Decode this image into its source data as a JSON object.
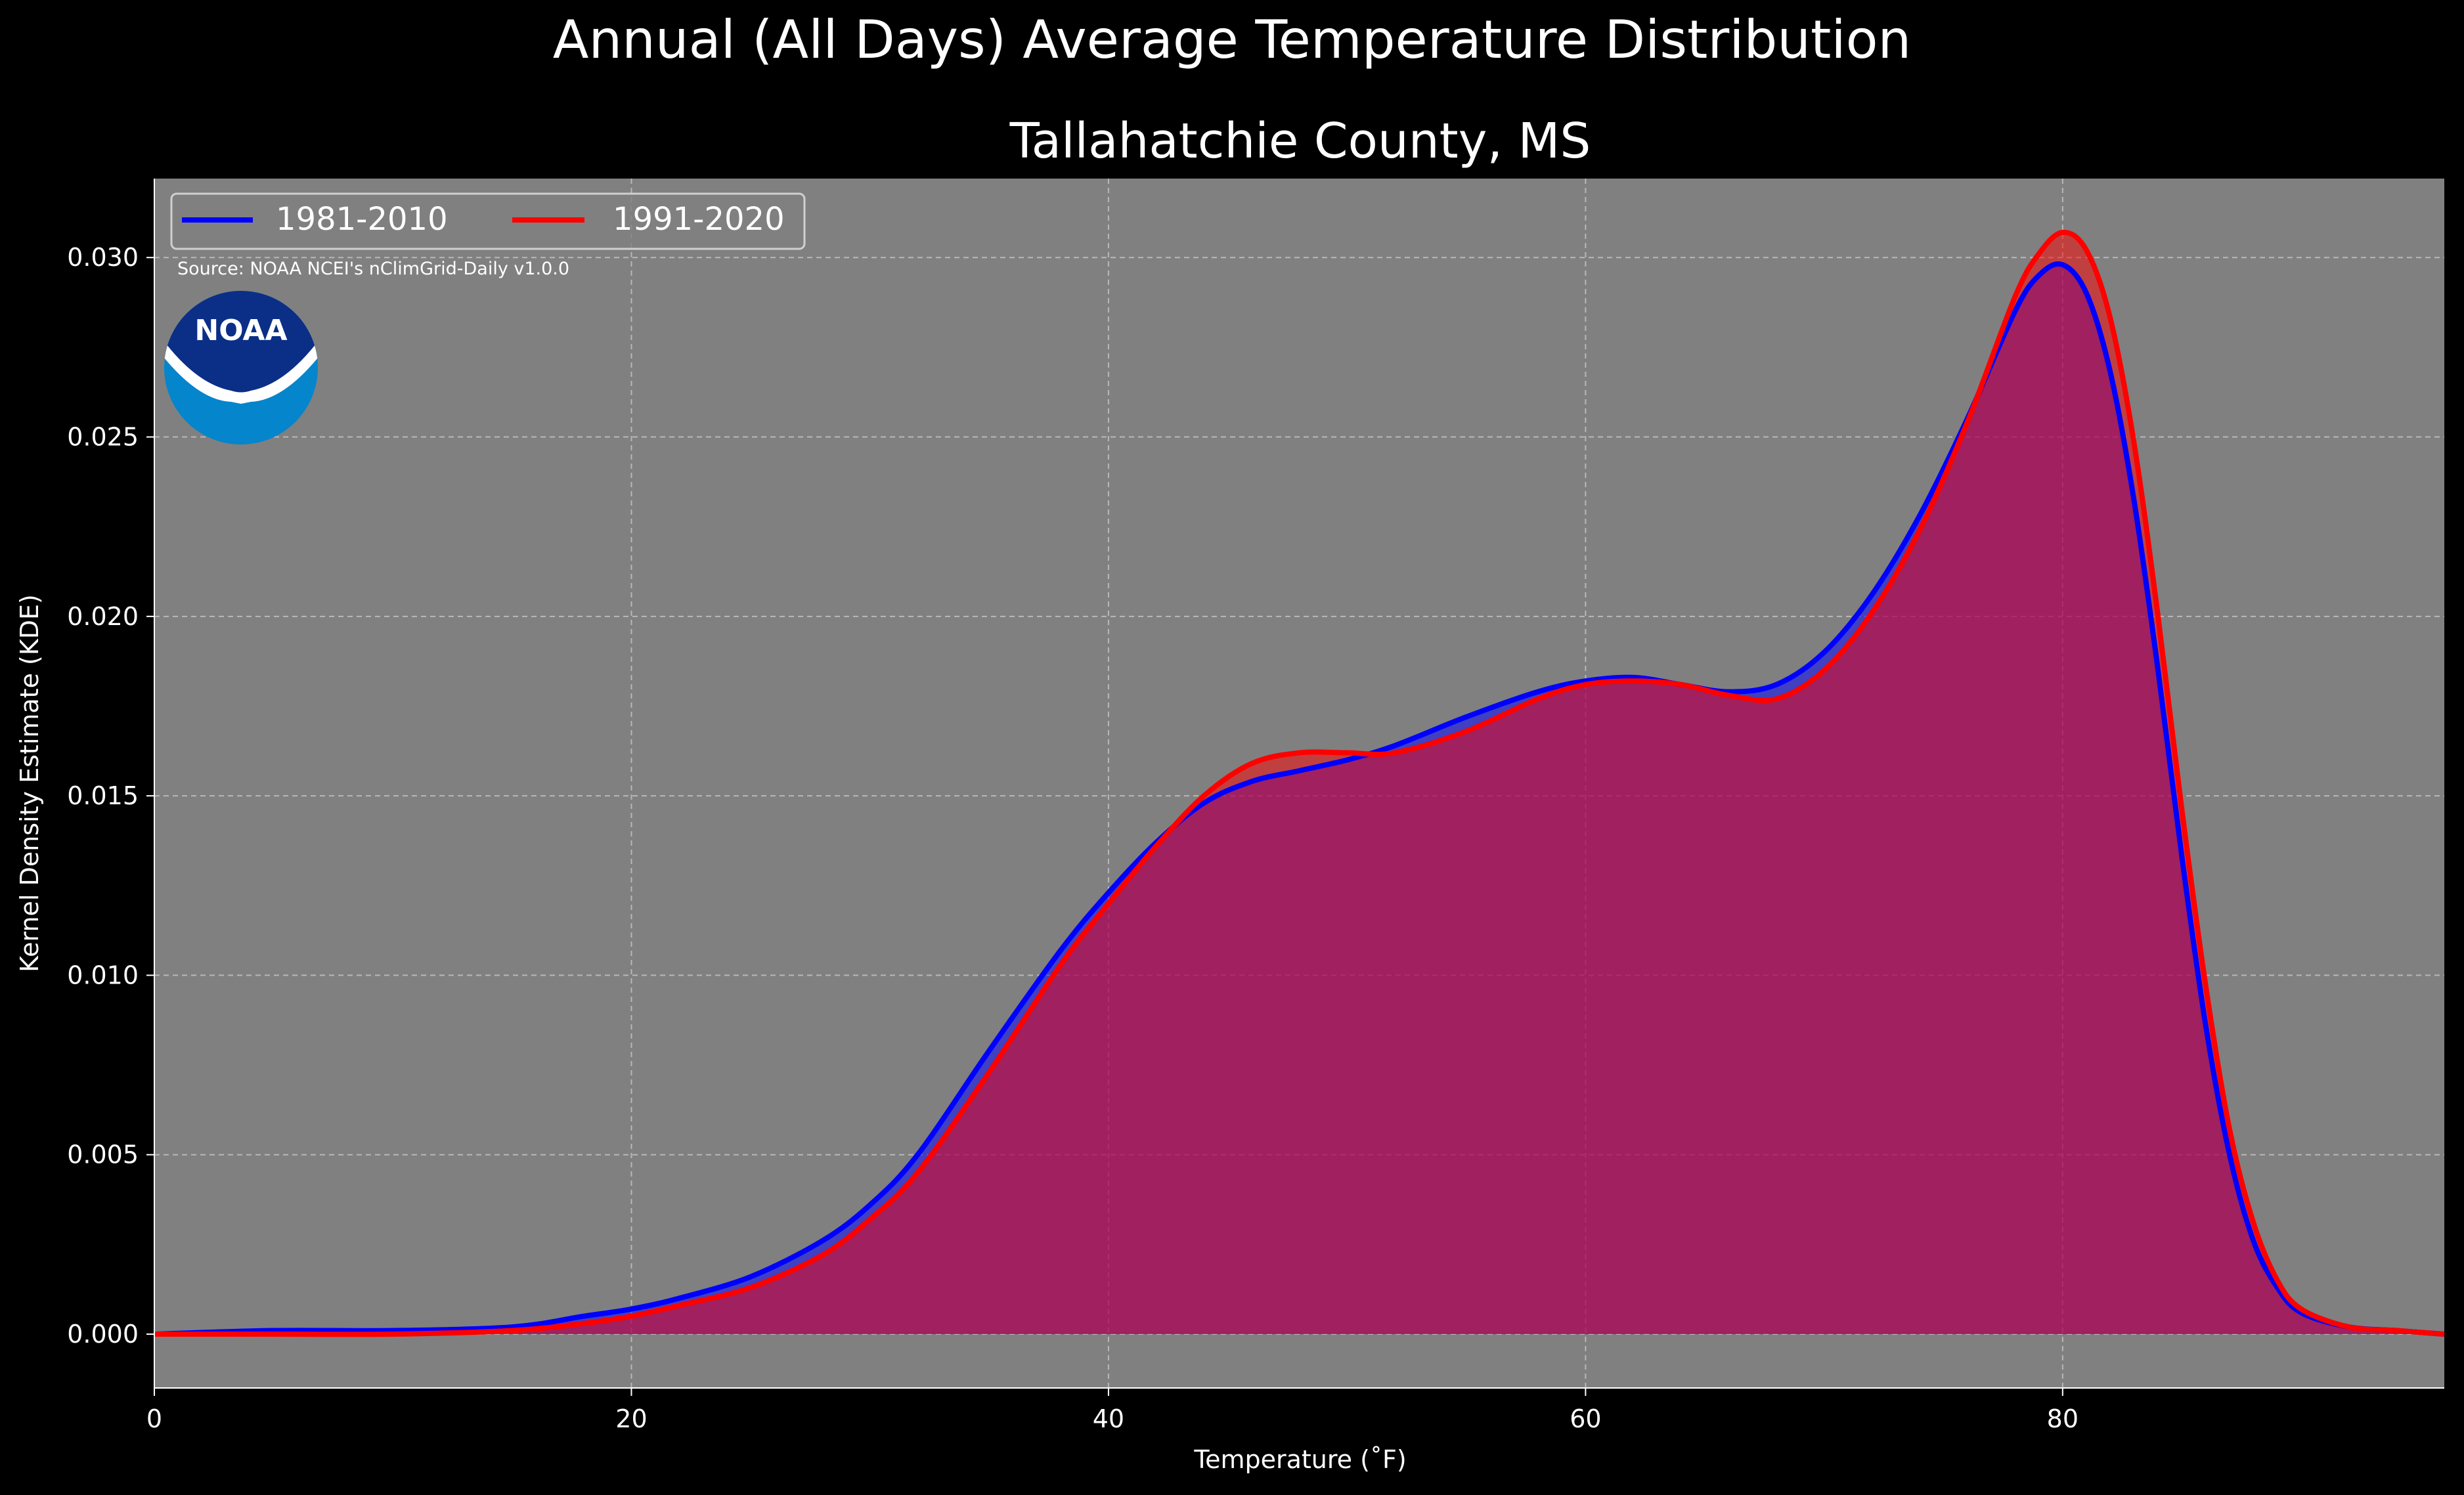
{
  "chart_data": {
    "type": "area",
    "title": "Annual (All Days) Average Temperature Distribution",
    "subtitle": "Tallahatchie County, MS",
    "xlabel": "Temperature (˚F)",
    "ylabel": "Kernel Density Estimate (KDE)",
    "xlim": [
      0,
      96
    ],
    "ylim": [
      -0.0015,
      0.0322
    ],
    "xticks": [
      0,
      20,
      40,
      60,
      80
    ],
    "xtick_labels": [
      "0",
      "20",
      "40",
      "60",
      "80"
    ],
    "yticks": [
      0.0,
      0.005,
      0.01,
      0.015,
      0.02,
      0.025,
      0.03
    ],
    "ytick_labels": [
      "0.000",
      "0.005",
      "0.010",
      "0.015",
      "0.020",
      "0.025",
      "0.030"
    ],
    "grid": true,
    "legend_position": "top-left",
    "annotation": "Source: NOAA NCEI's nClimGrid-Daily v1.0.0",
    "logo_text": "NOAA",
    "x": [
      0,
      5,
      10,
      15,
      18,
      20,
      22,
      25,
      28,
      30,
      32,
      35,
      38,
      40,
      42,
      44,
      46,
      48,
      50,
      52,
      55,
      58,
      60,
      62,
      64,
      66,
      68,
      70,
      72,
      74,
      76,
      78,
      79,
      80,
      81,
      82,
      83,
      84,
      85,
      86,
      87,
      88,
      89,
      90,
      92,
      94,
      96
    ],
    "series": [
      {
        "name": "1981-2010",
        "color": "#0000ff",
        "values": [
          0.0,
          0.0001,
          0.0001,
          0.0002,
          0.0005,
          0.0007,
          0.001,
          0.0016,
          0.0026,
          0.0036,
          0.005,
          0.0079,
          0.0107,
          0.0123,
          0.0137,
          0.0148,
          0.0154,
          0.0157,
          0.016,
          0.0164,
          0.0172,
          0.0179,
          0.0182,
          0.0183,
          0.0181,
          0.0179,
          0.0181,
          0.019,
          0.0206,
          0.0228,
          0.0255,
          0.0285,
          0.0295,
          0.0298,
          0.029,
          0.0268,
          0.0232,
          0.0185,
          0.0133,
          0.0086,
          0.005,
          0.0026,
          0.0013,
          0.0006,
          0.0002,
          0.0001,
          0.0
        ]
      },
      {
        "name": "1991-2020",
        "color": "#ff0000",
        "values": [
          0.0,
          0.0,
          0.0,
          0.0001,
          0.0003,
          0.0005,
          0.0008,
          0.0013,
          0.0022,
          0.0032,
          0.0045,
          0.0073,
          0.0103,
          0.012,
          0.0136,
          0.015,
          0.0159,
          0.0162,
          0.0162,
          0.0162,
          0.0168,
          0.0177,
          0.0181,
          0.0182,
          0.0181,
          0.0178,
          0.0177,
          0.0185,
          0.0201,
          0.0224,
          0.0254,
          0.0289,
          0.0301,
          0.0307,
          0.0302,
          0.0283,
          0.0248,
          0.02,
          0.0146,
          0.0097,
          0.0057,
          0.0031,
          0.0015,
          0.0007,
          0.0002,
          0.0001,
          0.0
        ]
      }
    ]
  }
}
